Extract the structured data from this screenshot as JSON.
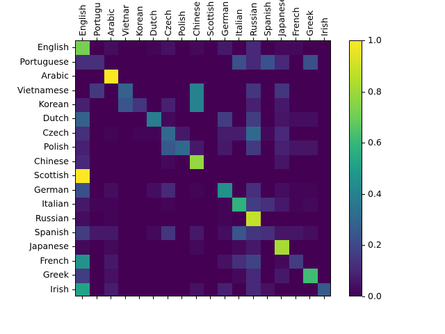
{
  "chart_data": {
    "type": "heatmap",
    "title": "",
    "xlabel": "",
    "ylabel": "",
    "x_categories": [
      "English",
      "Portuguese",
      "Arabic",
      "Vietnamese",
      "Korean",
      "Dutch",
      "Czech",
      "Polish",
      "Chinese",
      "Scottish",
      "German",
      "Italian",
      "Russian",
      "Spanish",
      "Japanese",
      "French",
      "Greek",
      "Irish"
    ],
    "y_categories": [
      "English",
      "Portuguese",
      "Arabic",
      "Vietnamese",
      "Korean",
      "Dutch",
      "Czech",
      "Polish",
      "Chinese",
      "Scottish",
      "German",
      "Italian",
      "Russian",
      "Spanish",
      "Japanese",
      "French",
      "Greek",
      "Irish"
    ],
    "x_tick_labels_displayed": [
      "English",
      "Portugu",
      "Arabic",
      "Vietnar",
      "Korean",
      "Dutch",
      "Czech",
      "Polish",
      "Chinese",
      "Scottish",
      "German",
      "Italian",
      "Russian",
      "Spanish",
      "Japanese",
      "French",
      "Greek",
      "Irish"
    ],
    "values": [
      [
        0.72,
        0.0,
        0.03,
        0.0,
        0.0,
        0.01,
        0.04,
        0.0,
        0.02,
        0.0,
        0.06,
        0.0,
        0.1,
        0.0,
        0.02,
        0.02,
        0.0,
        0.0
      ],
      [
        0.12,
        0.12,
        0.0,
        0.0,
        0.0,
        0.0,
        0.0,
        0.0,
        0.0,
        0.0,
        0.0,
        0.22,
        0.1,
        0.23,
        0.1,
        0.0,
        0.22,
        0.0
      ],
      [
        0.0,
        0.0,
        1.0,
        0.0,
        0.0,
        0.0,
        0.0,
        0.0,
        0.0,
        0.0,
        0.0,
        0.0,
        0.0,
        0.0,
        0.0,
        0.0,
        0.0,
        0.0
      ],
      [
        0.0,
        0.15,
        0.0,
        0.28,
        0.0,
        0.0,
        0.0,
        0.0,
        0.4,
        0.0,
        0.0,
        0.0,
        0.14,
        0.0,
        0.14,
        0.0,
        0.0,
        0.0
      ],
      [
        0.08,
        0.0,
        0.0,
        0.24,
        0.14,
        0.0,
        0.08,
        0.0,
        0.4,
        0.0,
        0.0,
        0.0,
        0.08,
        0.0,
        0.06,
        0.0,
        0.0,
        0.0
      ],
      [
        0.28,
        0.0,
        0.0,
        0.0,
        0.0,
        0.38,
        0.02,
        0.0,
        0.0,
        0.0,
        0.16,
        0.0,
        0.16,
        0.0,
        0.05,
        0.03,
        0.03,
        0.0
      ],
      [
        0.12,
        0.0,
        0.01,
        0.0,
        0.01,
        0.01,
        0.3,
        0.06,
        0.0,
        0.0,
        0.07,
        0.07,
        0.3,
        0.02,
        0.1,
        0.0,
        0.0,
        0.0
      ],
      [
        0.08,
        0.0,
        0.0,
        0.0,
        0.0,
        0.0,
        0.25,
        0.3,
        0.06,
        0.0,
        0.06,
        0.0,
        0.15,
        0.0,
        0.08,
        0.05,
        0.05,
        0.0
      ],
      [
        0.1,
        0.0,
        0.0,
        0.0,
        0.0,
        0.0,
        0.02,
        0.0,
        0.78,
        0.0,
        0.0,
        0.0,
        0.0,
        0.0,
        0.05,
        0.0,
        0.0,
        0.0
      ],
      [
        1.0,
        0.0,
        0.0,
        0.0,
        0.0,
        0.0,
        0.0,
        0.0,
        0.0,
        0.0,
        0.0,
        0.0,
        0.0,
        0.0,
        0.0,
        0.0,
        0.0,
        0.0
      ],
      [
        0.22,
        0.0,
        0.03,
        0.0,
        0.0,
        0.03,
        0.1,
        0.0,
        0.01,
        0.0,
        0.45,
        0.0,
        0.12,
        0.0,
        0.03,
        0.01,
        0.01,
        0.0
      ],
      [
        0.06,
        0.01,
        0.01,
        0.0,
        0.0,
        0.0,
        0.01,
        0.0,
        0.0,
        0.0,
        0.01,
        0.58,
        0.16,
        0.12,
        0.06,
        0.01,
        0.02,
        0.0
      ],
      [
        0.03,
        0.0,
        0.01,
        0.0,
        0.0,
        0.0,
        0.0,
        0.0,
        0.0,
        0.0,
        0.01,
        0.0,
        0.88,
        0.0,
        0.0,
        0.0,
        0.0,
        0.0
      ],
      [
        0.16,
        0.06,
        0.06,
        0.0,
        0.0,
        0.02,
        0.14,
        0.0,
        0.06,
        0.0,
        0.03,
        0.24,
        0.14,
        0.12,
        0.05,
        0.05,
        0.03,
        0.0
      ],
      [
        0.02,
        0.0,
        0.02,
        0.0,
        0.0,
        0.0,
        0.0,
        0.0,
        0.02,
        0.0,
        0.0,
        0.02,
        0.06,
        0.0,
        0.82,
        0.0,
        0.0,
        0.0
      ],
      [
        0.46,
        0.0,
        0.06,
        0.0,
        0.0,
        0.0,
        0.0,
        0.0,
        0.0,
        0.0,
        0.04,
        0.12,
        0.18,
        0.0,
        0.02,
        0.16,
        0.0,
        0.0
      ],
      [
        0.16,
        0.0,
        0.04,
        0.0,
        0.0,
        0.0,
        0.0,
        0.0,
        0.0,
        0.0,
        0.0,
        0.02,
        0.1,
        0.0,
        0.06,
        0.0,
        0.62,
        0.0
      ],
      [
        0.52,
        0.0,
        0.07,
        0.0,
        0.0,
        0.0,
        0.0,
        0.0,
        0.04,
        0.0,
        0.08,
        0.0,
        0.1,
        0.04,
        0.0,
        0.0,
        0.0,
        0.25
      ]
    ],
    "colormap": "viridis",
    "colorbar": {
      "min": 0.0,
      "max": 1.0,
      "ticks": [
        "0.0",
        "0.2",
        "0.4",
        "0.6",
        "0.8",
        "1.0"
      ]
    },
    "grid": false,
    "legend_position": "right (colorbar)"
  }
}
